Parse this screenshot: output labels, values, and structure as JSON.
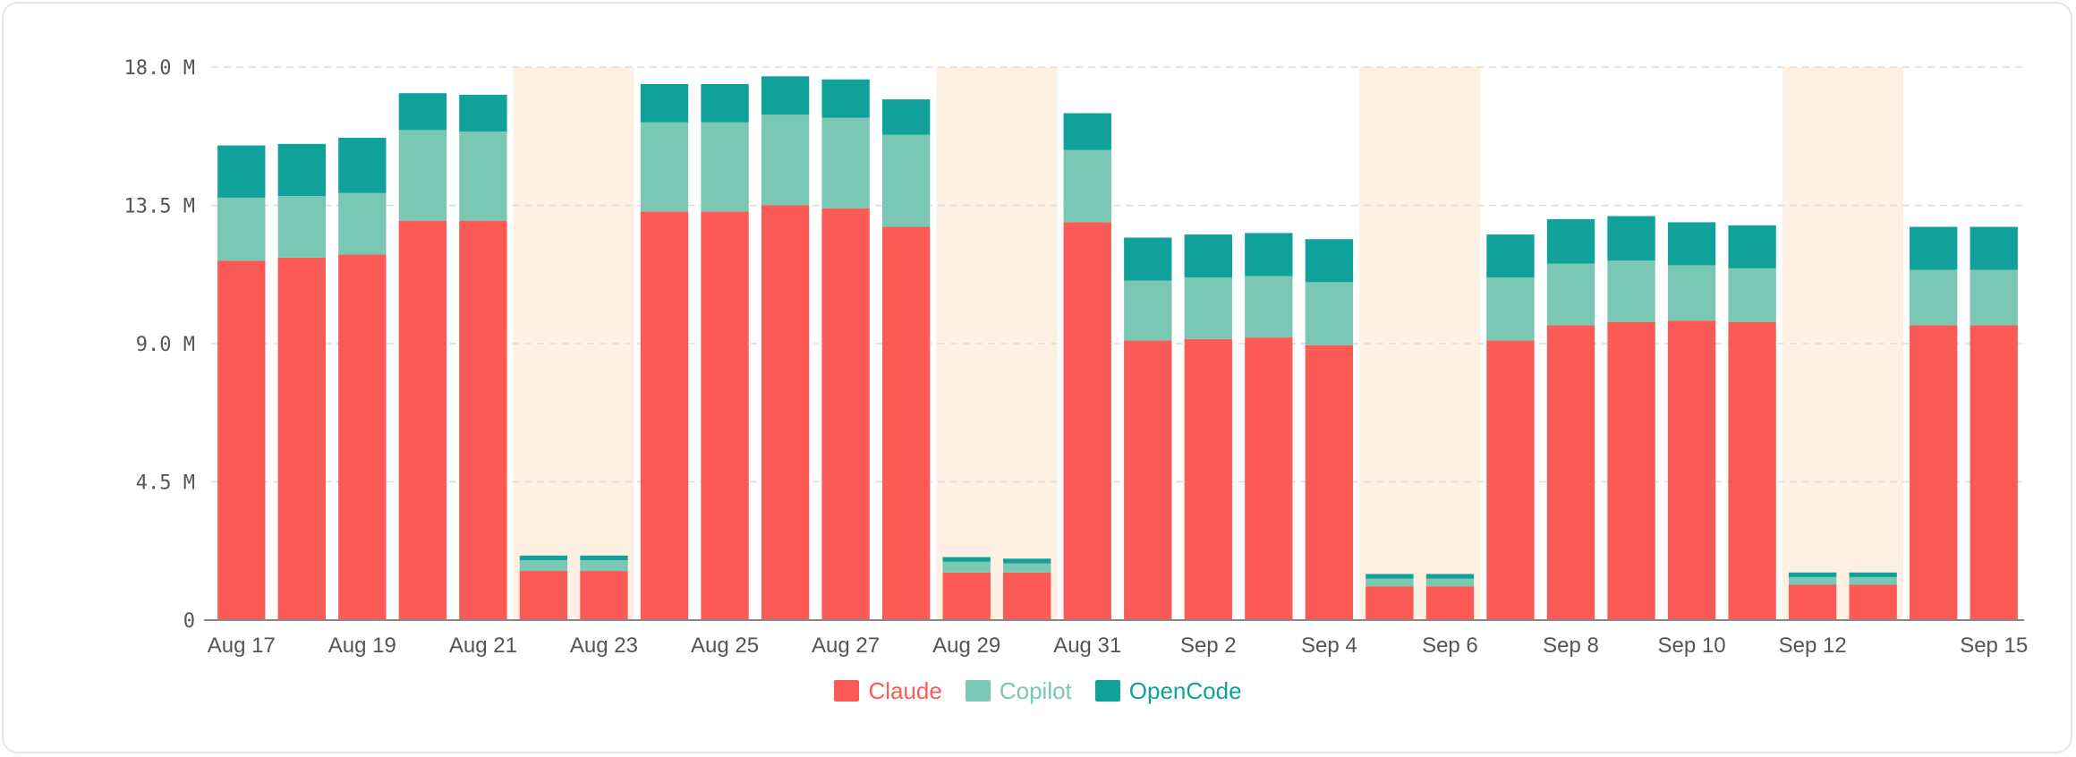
{
  "chart_data": {
    "type": "bar",
    "stacked": true,
    "categories": [
      "Aug 17",
      "Aug 18",
      "Aug 19",
      "Aug 20",
      "Aug 21",
      "Aug 22",
      "Aug 23",
      "Aug 24",
      "Aug 25",
      "Aug 26",
      "Aug 27",
      "Aug 28",
      "Aug 29",
      "Aug 30",
      "Aug 31",
      "Sep 1",
      "Sep 2",
      "Sep 3",
      "Sep 4",
      "Sep 5",
      "Sep 6",
      "Sep 7",
      "Sep 8",
      "Sep 9",
      "Sep 10",
      "Sep 11",
      "Sep 12",
      "Sep 13",
      "Sep 14",
      "Sep 15"
    ],
    "tick_labels": [
      "Aug 17",
      "Aug 19",
      "Aug 21",
      "Aug 23",
      "Aug 25",
      "Aug 27",
      "Aug 29",
      "Aug 31",
      "Sep 2",
      "Sep 4",
      "Sep 6",
      "Sep 8",
      "Sep 10",
      "Sep 12",
      "Sep 15"
    ],
    "highlighted_ranges": [
      [
        "Aug 22",
        "Aug 23"
      ],
      [
        "Aug 29",
        "Aug 30"
      ],
      [
        "Sep 5",
        "Sep 6"
      ],
      [
        "Sep 12",
        "Sep 13"
      ]
    ],
    "series": [
      {
        "name": "Claude",
        "color": "#fb5a56",
        "values": [
          11.7,
          11.8,
          11.9,
          13.0,
          13.0,
          1.6,
          1.6,
          13.3,
          13.3,
          13.5,
          13.4,
          12.8,
          1.55,
          1.55,
          12.95,
          9.1,
          9.15,
          9.2,
          8.95,
          1.1,
          1.1,
          9.1,
          9.6,
          9.7,
          9.75,
          9.7,
          1.15,
          1.15,
          9.6,
          9.6
        ]
      },
      {
        "name": "Copilot",
        "color": "#7ac7b4",
        "values": [
          2.05,
          2.0,
          2.0,
          2.95,
          2.9,
          0.35,
          0.35,
          2.9,
          2.9,
          2.95,
          2.95,
          3.0,
          0.35,
          0.3,
          2.35,
          1.95,
          2.0,
          2.0,
          2.05,
          0.25,
          0.25,
          2.05,
          2.0,
          2.0,
          1.8,
          1.75,
          0.25,
          0.25,
          1.8,
          1.8
        ]
      },
      {
        "name": "OpenCode",
        "color": "#10a19b",
        "values": [
          1.7,
          1.7,
          1.8,
          1.2,
          1.2,
          0.15,
          0.15,
          1.25,
          1.25,
          1.25,
          1.25,
          1.15,
          0.15,
          0.15,
          1.2,
          1.4,
          1.4,
          1.4,
          1.4,
          0.15,
          0.15,
          1.4,
          1.45,
          1.45,
          1.4,
          1.4,
          0.15,
          0.15,
          1.4,
          1.4
        ]
      }
    ],
    "yticks": [
      0,
      4.5,
      9.0,
      13.5,
      18.0
    ],
    "ytick_labels": [
      "0",
      "4.5 M",
      "9.0 M",
      "13.5 M",
      "18.0 M"
    ],
    "ylim": [
      0,
      18
    ],
    "grid": true,
    "legend_position": "bottom-center"
  },
  "colors": {
    "highlight_band": "#fef0e2",
    "grid": "#dddddd",
    "axis": "#888888"
  }
}
